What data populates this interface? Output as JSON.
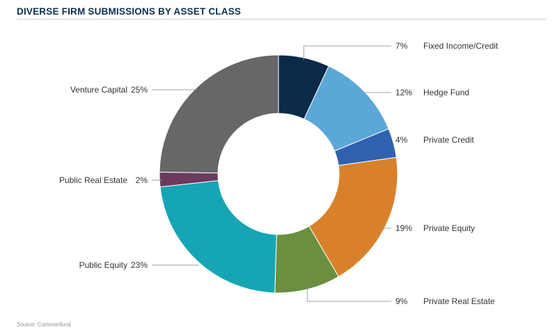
{
  "chart_data": {
    "type": "pie",
    "style": "donut",
    "title": "DIVERSE FIRM SUBMISSIONS BY ASSET CLASS",
    "source": "Source: Commonfund",
    "slices": [
      {
        "label": "Fixed Income/Credit",
        "value": 7,
        "display": "7%",
        "color": "#0b2a48",
        "side": "right"
      },
      {
        "label": "Hedge Fund",
        "value": 12,
        "display": "12%",
        "color": "#5ba7d8",
        "side": "right"
      },
      {
        "label": "Private Credit",
        "value": 4,
        "display": "4%",
        "color": "#2e62b0",
        "side": "right"
      },
      {
        "label": "Private Equity",
        "value": 19,
        "display": "19%",
        "color": "#d8812a",
        "side": "right"
      },
      {
        "label": "Private Real Estate",
        "value": 9,
        "display": "9%",
        "color": "#6a8f3e",
        "side": "right"
      },
      {
        "label": "Public Equity",
        "value": 23,
        "display": "23%",
        "color": "#16a5b5",
        "side": "left"
      },
      {
        "label": "Public Real Estate",
        "value": 2,
        "display": "2%",
        "color": "#6b3a5e",
        "side": "left"
      },
      {
        "label": "Venture Capital",
        "value": 25,
        "display": "25%",
        "color": "#67676a",
        "side": "left"
      }
    ]
  }
}
